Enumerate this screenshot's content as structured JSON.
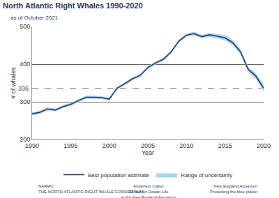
{
  "chart_data": {
    "type": "line",
    "title": "North Atlantic Right Whales 1990-2020",
    "subtitle": "as of October 2021",
    "x_label": "Year",
    "y_label": "# of whales",
    "x": [
      1990,
      1991,
      1992,
      1993,
      1994,
      1995,
      1996,
      1997,
      1998,
      1999,
      2000,
      2001,
      2002,
      2003,
      2004,
      2005,
      2006,
      2007,
      2008,
      2009,
      2010,
      2011,
      2012,
      2013,
      2014,
      2015,
      2016,
      2017,
      2018,
      2019,
      2020
    ],
    "series": [
      {
        "name": "Best population estimate",
        "color": "#2b3a67",
        "values": [
          268,
          272,
          281,
          278,
          287,
          293,
          303,
          312,
          312,
          311,
          307,
          336,
          348,
          361,
          370,
          391,
          403,
          413,
          432,
          461,
          477,
          481,
          473,
          478,
          474,
          470,
          457,
          433,
          386,
          368,
          336
        ]
      },
      {
        "name": "Range of uncertainty",
        "color": "#a9d6f5",
        "lower": [
          264,
          268,
          277,
          274,
          283,
          289,
          299,
          308,
          308,
          307,
          303,
          332,
          344,
          357,
          366,
          387,
          399,
          409,
          428,
          457,
          473,
          476,
          468,
          473,
          468,
          463,
          450,
          426,
          379,
          360,
          326
        ],
        "upper": [
          272,
          276,
          285,
          282,
          291,
          297,
          307,
          316,
          316,
          315,
          311,
          340,
          352,
          365,
          374,
          395,
          407,
          417,
          436,
          465,
          481,
          486,
          478,
          483,
          480,
          477,
          464,
          440,
          393,
          376,
          346
        ]
      }
    ],
    "xlim": [
      1990,
      2020
    ],
    "xticks": [
      1990,
      1995,
      2000,
      2005,
      2010,
      2015,
      2020
    ],
    "ylim": [
      200,
      500
    ],
    "yticks": [
      200,
      300,
      400,
      500
    ],
    "reference_line": 336,
    "grid": true,
    "legend": "bottom",
    "footer": [
      [
        "NARWC",
        "THE NORTH ATLANTIC RIGHT WHALE CONSORTIUM"
      ],
      [
        "Anderson Cabot",
        "Center for Ocean Life",
        "at the New England Aquarium"
      ],
      [
        "New England Aquarium",
        "Protecting the blue planet"
      ]
    ]
  }
}
